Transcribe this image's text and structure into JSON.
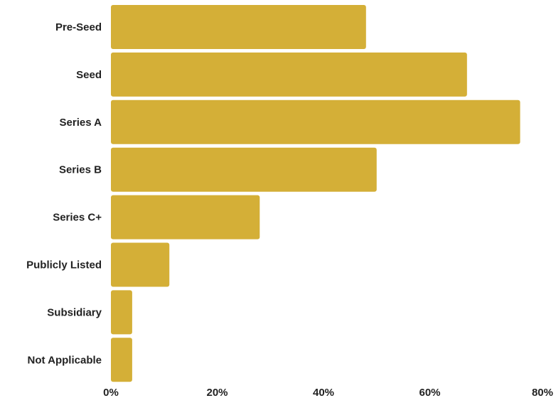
{
  "chart_data": {
    "type": "bar",
    "orientation": "horizontal",
    "categories": [
      "Pre-Seed",
      "Seed",
      "Series A",
      "Series B",
      "Series C+",
      "Publicly Listed",
      "Subsidiary",
      "Not Applicable"
    ],
    "values": [
      48,
      67,
      77,
      50,
      28,
      11,
      4,
      4
    ],
    "value_unit": "%",
    "xlim": [
      0,
      80
    ],
    "x_ticks": [
      {
        "value": 0,
        "label": "0%"
      },
      {
        "value": 20,
        "label": "20%"
      },
      {
        "value": 40,
        "label": "40%"
      },
      {
        "value": 60,
        "label": "60%"
      },
      {
        "value": 80,
        "label": "80%"
      }
    ],
    "bar_color": "#D4AF37",
    "grid": false,
    "legend": "none"
  }
}
